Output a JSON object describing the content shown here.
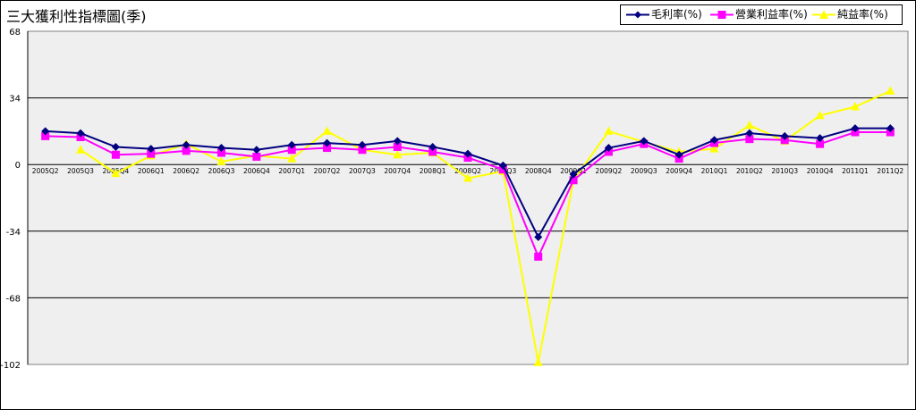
{
  "chart_data": {
    "type": "line",
    "title": "三大獲利性指標圖(季)",
    "categories": [
      "2005Q2",
      "2005Q3",
      "2005Q4",
      "2006Q1",
      "2006Q2",
      "2006Q3",
      "2006Q4",
      "2007Q1",
      "2007Q2",
      "2007Q3",
      "2007Q4",
      "2008Q1",
      "2008Q2",
      "2008Q3",
      "2008Q4",
      "2009Q1",
      "2009Q2",
      "2009Q3",
      "2009Q4",
      "2010Q1",
      "2010Q2",
      "2010Q3",
      "2010Q4",
      "2011Q1",
      "2011Q2"
    ],
    "ylim": [
      -102,
      68
    ],
    "yticks": [
      68,
      34,
      0,
      -34,
      -68,
      -102
    ],
    "grid": true,
    "legend_position": "top-right",
    "series": [
      {
        "name": "毛利率(%)",
        "color": "#000080",
        "marker": "diamond",
        "values": [
          17,
          16,
          9,
          8,
          10,
          8.5,
          7.5,
          10,
          11,
          10,
          12,
          9,
          5.5,
          -0.5,
          -37,
          -5,
          8.5,
          12,
          5,
          12.5,
          16,
          14.5,
          13.5,
          18.5,
          18.5
        ]
      },
      {
        "name": "營業利益率(%)",
        "color": "#ff00ff",
        "marker": "square",
        "values": [
          14.5,
          14,
          5,
          5.5,
          7,
          6,
          4,
          7.5,
          8.5,
          7.5,
          9,
          6.5,
          3.5,
          -2.5,
          -47,
          -8,
          6.5,
          10.5,
          3,
          11,
          13,
          12.5,
          10.5,
          16.5,
          16.5
        ]
      },
      {
        "name": "純益率(%)",
        "color": "#ffff00",
        "marker": "triangle",
        "values": [
          null,
          7.5,
          -4.5,
          4.5,
          10.5,
          1.5,
          4.5,
          3,
          17,
          7.5,
          5,
          6,
          -7,
          -3.5,
          -101,
          -8,
          17,
          11.5,
          6.5,
          8,
          20,
          12,
          25,
          29.5,
          37.5
        ]
      }
    ]
  }
}
